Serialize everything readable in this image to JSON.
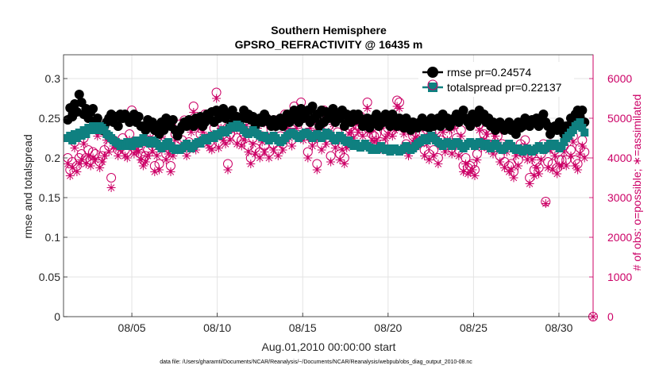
{
  "chart_data": {
    "type": "scatter",
    "title": "Southern Hemisphere",
    "subtitle": "GPSRO_REFRACTIVITY @ 16435 m",
    "xlabel": "Aug.01,2010 00:00:00 start",
    "ylabel_left": "rmse and totalspread",
    "ylabel_right": "# of obs: o=possible; ∗=assimilated",
    "footnote": "data file: /Users/gharamti/Documents/NCAR/Reanalysis/~/Documents/NCAR/Reanalysis/webpub/obs_diag_output_2010-08.nc",
    "x_ticks": [
      {
        "day": 5,
        "label": "08/05"
      },
      {
        "day": 10,
        "label": "08/10"
      },
      {
        "day": 15,
        "label": "08/15"
      },
      {
        "day": 20,
        "label": "08/20"
      },
      {
        "day": 25,
        "label": "08/25"
      },
      {
        "day": 30,
        "label": "08/30"
      }
    ],
    "xlim_days": [
      1.0,
      32.0
    ],
    "y_left": {
      "ylim": [
        0,
        0.33
      ],
      "ticks": [
        "0",
        "0.05",
        "0.1",
        "0.15",
        "0.2",
        "0.25",
        "0.3"
      ]
    },
    "y_right": {
      "ylim": [
        0,
        6600
      ],
      "ticks": [
        "0",
        "1000",
        "2000",
        "3000",
        "4000",
        "5000",
        "6000"
      ]
    },
    "grid": true,
    "legend": {
      "position": "top-right",
      "entries": [
        "rmse pr=0.24574",
        "totalspread pr=0.22137"
      ]
    },
    "colors": {
      "rmse": "#000000",
      "totalspread": "#0f8080",
      "obs": "#cc0066"
    },
    "series": [
      {
        "key": "rmse",
        "axis": "left",
        "values": [
          0.248,
          0.263,
          0.252,
          0.268,
          0.258,
          0.28,
          0.27,
          0.255,
          0.262,
          0.25,
          0.258,
          0.262,
          0.245,
          0.25,
          0.24,
          0.235,
          0.24,
          0.245,
          0.25,
          0.255,
          0.245,
          0.252,
          0.24,
          0.255,
          0.25,
          0.255,
          0.25,
          0.245,
          0.25,
          0.255,
          0.245,
          0.252,
          0.24,
          0.24,
          0.235,
          0.248,
          0.24,
          0.245,
          0.235,
          0.24,
          0.23,
          0.245,
          0.235,
          0.25,
          0.245,
          0.24,
          0.248,
          0.235,
          0.228,
          0.235,
          0.24,
          0.245,
          0.24,
          0.248,
          0.245,
          0.24,
          0.25,
          0.245,
          0.252,
          0.24,
          0.245,
          0.255,
          0.25,
          0.258,
          0.245,
          0.26,
          0.25,
          0.255,
          0.262,
          0.25,
          0.255,
          0.24,
          0.26,
          0.25,
          0.252,
          0.245,
          0.25,
          0.26,
          0.25,
          0.255,
          0.248,
          0.252,
          0.24,
          0.248,
          0.25,
          0.245,
          0.255,
          0.25,
          0.245,
          0.24,
          0.248,
          0.24,
          0.245,
          0.25,
          0.24,
          0.245,
          0.255,
          0.245,
          0.25,
          0.26,
          0.252,
          0.245,
          0.262,
          0.25,
          0.255,
          0.26,
          0.245,
          0.265,
          0.25,
          0.255,
          0.24,
          0.26,
          0.245,
          0.258,
          0.25,
          0.255,
          0.262,
          0.245,
          0.255,
          0.25,
          0.26,
          0.24,
          0.255,
          0.25,
          0.245,
          0.255,
          0.248,
          0.255,
          0.25,
          0.24,
          0.245,
          0.25,
          0.238,
          0.245,
          0.25,
          0.255,
          0.24,
          0.25,
          0.245,
          0.255,
          0.25,
          0.24,
          0.255,
          0.245,
          0.24,
          0.25,
          0.245,
          0.238,
          0.25,
          0.24,
          0.235,
          0.245,
          0.24,
          0.238,
          0.245,
          0.25,
          0.24,
          0.245,
          0.238,
          0.25,
          0.24,
          0.245,
          0.25,
          0.24,
          0.255,
          0.245,
          0.25,
          0.24,
          0.245,
          0.25,
          0.255,
          0.245,
          0.25,
          0.26,
          0.25,
          0.245,
          0.24,
          0.255,
          0.25,
          0.245,
          0.26,
          0.25,
          0.255,
          0.245,
          0.25,
          0.24,
          0.245,
          0.235,
          0.24,
          0.245,
          0.24,
          0.235,
          0.24,
          0.245,
          0.235,
          0.24,
          0.23,
          0.245,
          0.238,
          0.24,
          0.25,
          0.245,
          0.24,
          0.248,
          0.245,
          0.25,
          0.24,
          0.245,
          0.255,
          0.245,
          0.24,
          0.23,
          0.238,
          0.24,
          0.235,
          0.245,
          0.24,
          0.23,
          0.24,
          0.24,
          0.25,
          0.245,
          0.255,
          0.26,
          0.252,
          0.26,
          0.245
        ]
      },
      {
        "key": "totalspread",
        "axis": "left",
        "values": [
          0.225,
          0.228,
          0.222,
          0.23,
          0.225,
          0.232,
          0.228,
          0.235,
          0.23,
          0.238,
          0.235,
          0.24,
          0.238,
          0.235,
          0.24,
          0.238,
          0.235,
          0.23,
          0.228,
          0.225,
          0.222,
          0.22,
          0.218,
          0.215,
          0.218,
          0.215,
          0.22,
          0.218,
          0.215,
          0.22,
          0.222,
          0.218,
          0.22,
          0.225,
          0.222,
          0.22,
          0.218,
          0.222,
          0.22,
          0.218,
          0.215,
          0.212,
          0.215,
          0.218,
          0.22,
          0.215,
          0.212,
          0.21,
          0.212,
          0.21,
          0.212,
          0.215,
          0.218,
          0.215,
          0.212,
          0.215,
          0.218,
          0.22,
          0.218,
          0.222,
          0.225,
          0.222,
          0.225,
          0.228,
          0.225,
          0.23,
          0.228,
          0.232,
          0.235,
          0.232,
          0.235,
          0.238,
          0.24,
          0.238,
          0.242,
          0.24,
          0.238,
          0.235,
          0.232,
          0.23,
          0.232,
          0.235,
          0.232,
          0.23,
          0.228,
          0.226,
          0.228,
          0.225,
          0.222,
          0.225,
          0.228,
          0.225,
          0.222,
          0.22,
          0.222,
          0.225,
          0.228,
          0.23,
          0.232,
          0.23,
          0.228,
          0.225,
          0.228,
          0.23,
          0.232,
          0.23,
          0.228,
          0.225,
          0.228,
          0.23,
          0.228,
          0.225,
          0.228,
          0.232,
          0.23,
          0.228,
          0.225,
          0.222,
          0.225,
          0.228,
          0.225,
          0.222,
          0.22,
          0.222,
          0.218,
          0.215,
          0.218,
          0.215,
          0.213,
          0.215,
          0.218,
          0.215,
          0.213,
          0.21,
          0.212,
          0.21,
          0.212,
          0.215,
          0.212,
          0.21,
          0.212,
          0.208,
          0.21,
          0.212,
          0.21,
          0.208,
          0.21,
          0.212,
          0.215,
          0.212,
          0.21,
          0.212,
          0.215,
          0.218,
          0.22,
          0.222,
          0.225,
          0.222,
          0.225,
          0.228,
          0.225,
          0.222,
          0.22,
          0.218,
          0.215,
          0.218,
          0.22,
          0.218,
          0.215,
          0.218,
          0.22,
          0.218,
          0.215,
          0.212,
          0.215,
          0.218,
          0.22,
          0.218,
          0.215,
          0.218,
          0.22,
          0.218,
          0.215,
          0.218,
          0.215,
          0.212,
          0.215,
          0.218,
          0.215,
          0.212,
          0.21,
          0.212,
          0.215,
          0.218,
          0.215,
          0.212,
          0.21,
          0.212,
          0.21,
          0.208,
          0.21,
          0.212,
          0.21,
          0.208,
          0.21,
          0.212,
          0.215,
          0.212,
          0.21,
          0.212,
          0.215,
          0.218,
          0.215,
          0.218,
          0.215,
          0.212,
          0.215,
          0.22,
          0.225,
          0.228,
          0.232,
          0.235,
          0.24,
          0.242,
          0.245,
          0.238,
          0.232
        ]
      },
      {
        "key": "obs_possible",
        "axis": "right",
        "values": [
          4000,
          3700,
          3900,
          4400,
          3800,
          4000,
          4100,
          4500,
          4000,
          4200,
          3950,
          4150,
          4100,
          4700,
          3900,
          4050,
          4200,
          4600,
          4300,
          3500,
          4450,
          4400,
          4200,
          4350,
          4500,
          4200,
          4150,
          4600,
          5200,
          4250,
          4350,
          4300,
          4100,
          3950,
          4050,
          4200,
          4650,
          4300,
          3800,
          4200,
          3850,
          4700,
          4400,
          4100,
          4250,
          3800,
          4200,
          4600,
          4350,
          4850,
          4450,
          4950,
          4200,
          4400,
          4800,
          5300,
          4350,
          4900,
          4600,
          4800,
          5100,
          4500,
          4400,
          4350,
          4750,
          5650,
          4400,
          4900,
          4600,
          4500,
          3850,
          4600,
          4900,
          4850,
          4500,
          5000,
          4450,
          4600,
          4950,
          4300,
          4000,
          4500,
          4250,
          4900,
          4150,
          4550,
          4300,
          5000,
          4150,
          4700,
          4350,
          4950,
          4200,
          4550,
          4350,
          5100,
          4900,
          4650,
          4450,
          5300,
          4900,
          5100,
          5400,
          4600,
          4800,
          4150,
          4900,
          4450,
          4600,
          3850,
          4850,
          4350,
          5200,
          4500,
          4800,
          4050,
          5000,
          4400,
          4650,
          4100,
          4350,
          4000,
          4400,
          4750,
          4800,
          4650,
          5000,
          4800,
          5050,
          4700,
          4900,
          5400,
          4800,
          4600,
          4550,
          4600,
          4950,
          4400,
          4350,
          4650,
          4750,
          4950,
          4700,
          4850,
          5450,
          5400,
          4900,
          4750,
          4350,
          4200,
          4800,
          4550,
          4650,
          4450,
          4600,
          4900,
          4200,
          4500,
          4100,
          4650,
          4200,
          4700,
          4000,
          4450,
          4800,
          4300,
          4600,
          4850,
          4250,
          4900,
          4500,
          4200,
          4700,
          3800,
          4000,
          3750,
          3800,
          3850,
          3700,
          4100,
          4850,
          4400,
          4600,
          4750,
          4350,
          4500,
          4250,
          4700,
          4550,
          4050,
          4350,
          3900,
          4300,
          3800,
          3850,
          3650,
          4200,
          3950,
          4350,
          4250,
          4450,
          4100,
          3500,
          4100,
          3700,
          3900,
          3750,
          4100,
          4350,
          2900,
          3900,
          4350,
          3850,
          4200,
          3750,
          3950,
          3950,
          4300,
          3950,
          4800,
          4200,
          4550,
          3950,
          3850,
          4250,
          4450,
          4150
        ]
      },
      {
        "key": "obs_assimilated",
        "axis": "right",
        "values": [
          3850,
          3550,
          3750,
          4250,
          3650,
          3850,
          3950,
          4350,
          3850,
          4050,
          3800,
          4000,
          3950,
          4550,
          3750,
          3900,
          4050,
          4450,
          4150,
          3250,
          4300,
          4250,
          4050,
          4200,
          4350,
          4050,
          4000,
          4450,
          5050,
          4100,
          4200,
          4150,
          3950,
          3800,
          3900,
          4050,
          4500,
          4150,
          3650,
          4050,
          3700,
          4550,
          4250,
          3950,
          4100,
          3650,
          4050,
          4450,
          4200,
          4700,
          4300,
          4800,
          4050,
          4250,
          4650,
          5150,
          4200,
          4750,
          4450,
          4650,
          4950,
          4350,
          4250,
          4200,
          4600,
          5500,
          4250,
          4750,
          4450,
          4350,
          3700,
          4450,
          4750,
          4700,
          4350,
          4850,
          4300,
          4450,
          4800,
          4150,
          3850,
          4350,
          4100,
          4750,
          4000,
          4400,
          4150,
          4850,
          4000,
          4550,
          4200,
          4800,
          4050,
          4400,
          4200,
          4950,
          4750,
          4500,
          4300,
          5150,
          4750,
          4950,
          5250,
          4450,
          4650,
          4000,
          4750,
          4300,
          4450,
          3700,
          4700,
          4200,
          5050,
          4350,
          4650,
          3900,
          4850,
          4250,
          4500,
          3950,
          4200,
          3850,
          4250,
          4600,
          4650,
          4500,
          4850,
          4650,
          4900,
          4550,
          4750,
          5250,
          4650,
          4450,
          4400,
          4450,
          4800,
          4250,
          4200,
          4500,
          4600,
          4800,
          4550,
          4700,
          5300,
          5250,
          4750,
          4600,
          4200,
          4050,
          4650,
          4400,
          4500,
          4300,
          4450,
          4750,
          4050,
          4350,
          3950,
          4500,
          4050,
          4550,
          3850,
          4300,
          4650,
          4150,
          4450,
          4700,
          4100,
          4750,
          4350,
          4050,
          4550,
          3650,
          3850,
          3600,
          3650,
          3700,
          3550,
          3950,
          4700,
          4250,
          4450,
          4600,
          4200,
          4350,
          4100,
          4550,
          4400,
          3900,
          4200,
          3750,
          4150,
          3650,
          3700,
          3500,
          4050,
          3800,
          4200,
          4100,
          4300,
          3950,
          3350,
          3950,
          3550,
          3750,
          3600,
          3950,
          4200,
          2850,
          3750,
          4200,
          3700,
          4050,
          3600,
          3800,
          3800,
          4150,
          3800,
          4650,
          4050,
          4400,
          3800,
          3700,
          4100,
          4300,
          4000
        ]
      }
    ]
  }
}
